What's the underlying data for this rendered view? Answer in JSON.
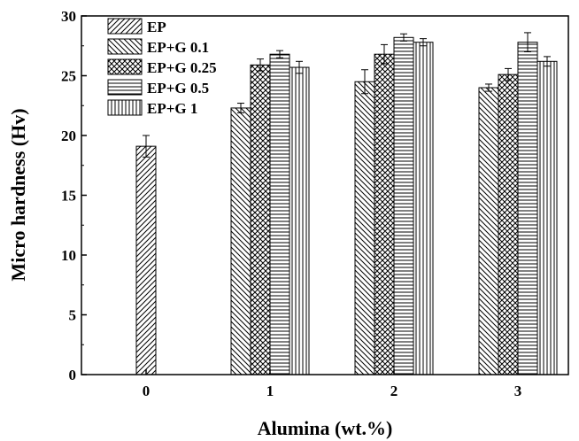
{
  "chart_data": {
    "type": "bar",
    "xlabel": "Alumina (wt.%)",
    "ylabel": "Micro hardness (Hv)",
    "ylim": [
      0,
      30
    ],
    "yticks": [
      0,
      5,
      10,
      15,
      20,
      25,
      30
    ],
    "categories": [
      "0",
      "1",
      "2",
      "3"
    ],
    "legend_position": "top-left",
    "series": [
      {
        "name": "EP",
        "pattern": "diagonal-right",
        "values": [
          19.1,
          null,
          null,
          null
        ],
        "errors": [
          0.9,
          null,
          null,
          null
        ]
      },
      {
        "name": "EP+G 0.1",
        "pattern": "diagonal-left",
        "values": [
          null,
          22.3,
          24.5,
          24.0
        ],
        "errors": [
          null,
          0.4,
          1.0,
          0.3
        ]
      },
      {
        "name": "EP+G 0.25",
        "pattern": "crosshatch",
        "values": [
          null,
          25.9,
          26.8,
          25.1
        ],
        "errors": [
          null,
          0.5,
          0.8,
          0.5
        ]
      },
      {
        "name": "EP+G 0.5",
        "pattern": "horizontal",
        "values": [
          null,
          26.8,
          28.2,
          27.8
        ],
        "errors": [
          null,
          0.3,
          0.3,
          0.8
        ]
      },
      {
        "name": "EP+G 1",
        "pattern": "vertical",
        "values": [
          null,
          25.7,
          27.8,
          26.2
        ],
        "errors": [
          null,
          0.5,
          0.3,
          0.4
        ]
      }
    ]
  }
}
